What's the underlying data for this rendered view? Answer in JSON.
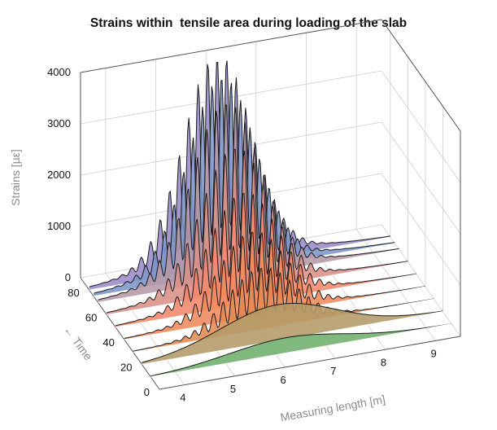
{
  "chart_data": {
    "type": "area",
    "title": "Strains within  tensile area during loading of the slab",
    "xlabel": "Measuring length [m]",
    "ylabel": "← Time",
    "zlabel": "Strains [µε]",
    "x_ticks": [
      "4",
      "5",
      "6",
      "7",
      "8",
      "9"
    ],
    "y_ticks": [
      "0",
      "20",
      "40",
      "60",
      "80"
    ],
    "z_ticks": [
      "0",
      "1000",
      "2000",
      "3000",
      "4000"
    ],
    "xlim": [
      3.5,
      9.5
    ],
    "ylim": [
      0,
      90
    ],
    "zlim": [
      0,
      4000
    ],
    "grid": true,
    "series": [
      {
        "time": 10,
        "peak": 300,
        "color": "#6fae6c"
      },
      {
        "time": 20,
        "peak": 700,
        "color": "#b49a68"
      },
      {
        "time": 30,
        "peak": 1150,
        "color": "#e38a52"
      },
      {
        "time": 40,
        "peak": 1600,
        "color": "#f08a5c"
      },
      {
        "time": 50,
        "peak": 2100,
        "color": "#f2876c"
      },
      {
        "time": 60,
        "peak": 2700,
        "color": "#d98f86"
      },
      {
        "time": 70,
        "peak": 3300,
        "color": "#b79aa8"
      },
      {
        "time": 75,
        "peak": 3650,
        "color": "#7c96c8"
      },
      {
        "time": 80,
        "peak": 4000,
        "color": "#9a8cc9"
      }
    ]
  }
}
